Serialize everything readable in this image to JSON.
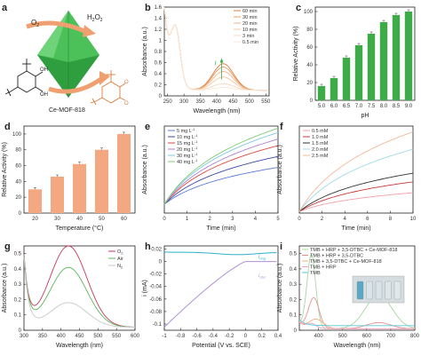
{
  "panel_a": {
    "letter": "a",
    "o2": "O",
    "o2_sub": "2",
    "h2o2": "H",
    "h2o2_sub1": "2",
    "h2o2_o": "O",
    "h2o2_sub2": "2",
    "mof_label": "Ce-MOF-818",
    "reactant_oh1": "OH",
    "reactant_oh2": "OH",
    "product_o1": "O",
    "product_o2": "O",
    "colors": {
      "mof": "#3db54a",
      "arrow": "#f0a070",
      "product": "#e07a3a"
    }
  },
  "chart_data": [
    {
      "panel": "b",
      "type": "line",
      "xlabel": "Wavelength (nm)",
      "ylabel": "Absorbance (a.u.)",
      "xlim": [
        240,
        560
      ],
      "ylim": [
        0,
        1.6
      ],
      "xticks": [
        250,
        300,
        350,
        400,
        450,
        500,
        550
      ],
      "yticks": [
        0.0,
        0.2,
        0.4,
        0.6,
        0.8,
        1.0,
        1.2,
        1.4,
        1.6
      ],
      "series": [
        {
          "name": "60 min",
          "color": "#e07a3a",
          "peak": 0.48
        },
        {
          "name": "30 min",
          "color": "#e89a60",
          "peak": 0.42
        },
        {
          "name": "20 min",
          "color": "#efb488",
          "peak": 0.34
        },
        {
          "name": "10 min",
          "color": "#f3c8a4",
          "peak": 0.24
        },
        {
          "name": "3 min",
          "color": "#f7d9bf",
          "peak": 0.12
        },
        {
          "name": "0.5 min",
          "color": "#fbe7d6",
          "peak": 0.05
        }
      ],
      "annotation": "I"
    },
    {
      "panel": "c",
      "type": "bar",
      "xlabel": "pH",
      "ylabel": "Relative Activity (%)",
      "ylim": [
        0,
        105
      ],
      "yticks": [
        0,
        20,
        40,
        60,
        80,
        100
      ],
      "categories": [
        "5.0",
        "6.0",
        "6.5",
        "7.0",
        "7.5",
        "8.0",
        "8.5",
        "9.0"
      ],
      "values": [
        16,
        25,
        48,
        62,
        75,
        88,
        96,
        100
      ],
      "color": "#3cab48"
    },
    {
      "panel": "d",
      "type": "bar",
      "xlabel": "Temperature (°C)",
      "ylabel": "Relative Activity (%)",
      "ylim": [
        0,
        110
      ],
      "yticks": [
        0,
        20,
        40,
        60,
        80,
        100
      ],
      "categories": [
        "20",
        "30",
        "40",
        "50",
        "60"
      ],
      "values": [
        30,
        46,
        62,
        80,
        100
      ],
      "color": "#f4a882"
    },
    {
      "panel": "e",
      "type": "line",
      "xlabel": "Time (min)",
      "ylabel": "Absorbance (a.u.)",
      "xlim": [
        0,
        5
      ],
      "xticks": [
        0,
        1,
        2,
        3,
        4,
        5
      ],
      "ylim": [
        0,
        0.4
      ],
      "series": [
        {
          "name": "5 mg L",
          "sup": "-1",
          "color": "#5b7bd8",
          "end": 0.21
        },
        {
          "name": "10 mg L",
          "sup": "-1",
          "color": "#3a4aa8",
          "end": 0.26
        },
        {
          "name": "15 mg L",
          "sup": "-1",
          "color": "#e0463c",
          "end": 0.31
        },
        {
          "name": "20 mg L",
          "sup": "-1",
          "color": "#b080d0",
          "end": 0.34
        },
        {
          "name": "30 mg L",
          "sup": "-1",
          "color": "#7fc8e0",
          "end": 0.37
        },
        {
          "name": "40 mg L",
          "sup": "-1",
          "color": "#7ccf72",
          "end": 0.39
        }
      ]
    },
    {
      "panel": "f",
      "type": "line",
      "xlabel": "Time (min)",
      "ylabel": "Absorbance (a.u.)",
      "xlim": [
        0,
        10
      ],
      "xticks": [
        0,
        2,
        4,
        6,
        8,
        10
      ],
      "ylim": [
        0,
        1.2
      ],
      "series": [
        {
          "name": "0.5 mM",
          "color": "#f0a0a8",
          "end": 0.28
        },
        {
          "name": "1.0 mM",
          "color": "#c83a3a",
          "end": 0.43
        },
        {
          "name": "1.5 mM",
          "color": "#333333",
          "end": 0.55
        },
        {
          "name": "2.0 mM",
          "color": "#a0d8e8",
          "end": 0.88
        },
        {
          "name": "2.5 mM",
          "color": "#f4b896",
          "end": 1.12
        }
      ]
    },
    {
      "panel": "g",
      "type": "line",
      "xlabel": "Wavelength (nm)",
      "ylabel": "Absorbance (a.u.)",
      "xlim": [
        300,
        600
      ],
      "xticks": [
        300,
        350,
        400,
        450,
        500,
        550,
        600
      ],
      "ylim": [
        0,
        0.55
      ],
      "yticks": [
        0.0,
        0.1,
        0.2,
        0.3,
        0.4,
        0.5
      ],
      "series": [
        {
          "name": "O",
          "sub": "2",
          "color": "#c83a5a",
          "peak": 0.53
        },
        {
          "name": "Air",
          "sub": "",
          "color": "#5cb85c",
          "peak": 0.39
        },
        {
          "name": "N",
          "sub": "2",
          "color": "#c8c8c8",
          "peak": 0.16
        }
      ]
    },
    {
      "panel": "h",
      "type": "line",
      "xlabel": "Potential (V vs. SCE)",
      "ylabel": "i (mA)",
      "xlim": [
        -1.0,
        0.4
      ],
      "xticks": [
        -1.0,
        -0.8,
        -0.6,
        -0.4,
        -0.2,
        0.0,
        0.2,
        0.4
      ],
      "ylim": [
        -0.11,
        0.025
      ],
      "yticks": [
        0.02,
        0.0,
        -0.02,
        -0.04,
        -0.06,
        -0.08,
        -0.1
      ],
      "series": [
        {
          "name": "i",
          "sub": "ring",
          "color": "#2fb0c8"
        },
        {
          "name": "i",
          "sub": "disc",
          "color": "#b090d8"
        }
      ]
    },
    {
      "panel": "i",
      "type": "line",
      "xlabel": "Wavelength (nm)",
      "ylabel": "Absorbance (a.u.)",
      "xlim": [
        320,
        800
      ],
      "xticks": [
        400,
        500,
        600,
        700,
        800
      ],
      "ylim": [
        0,
        0.55
      ],
      "yticks": [
        0.0,
        0.1,
        0.2,
        0.3,
        0.4,
        0.5
      ],
      "series": [
        {
          "name": "TMB + HRP + 3,5-DTBC + Ce-MOF-818",
          "color": "#a8d8a0"
        },
        {
          "name": "TMB + HRP + 3,5-DTBC",
          "color": "#e89090"
        },
        {
          "name": "TMB + 3,5-DTBC + Ce-MOF-818",
          "color": "#f4b080"
        },
        {
          "name": "TMB + HRP",
          "color": "#f0a0c8"
        },
        {
          "name": "TMB",
          "color": "#5bc8d8"
        }
      ]
    }
  ]
}
